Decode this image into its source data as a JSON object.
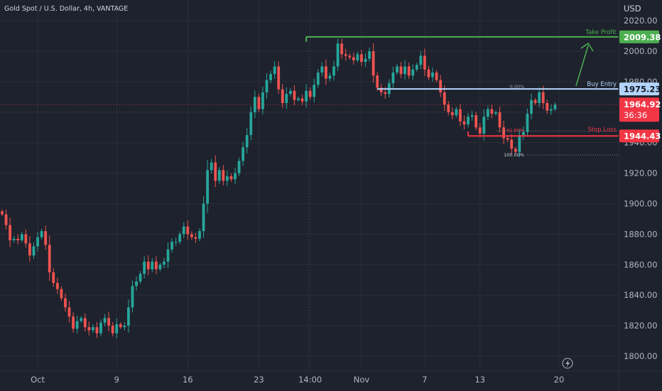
{
  "header": {
    "symbol_line": "Gold Spot / U.S. Dollar, 4h, VANTAGE"
  },
  "currency": "USD",
  "colors": {
    "background": "#1e222d",
    "up": "#26a69a",
    "down": "#ef5350",
    "take_profit": "#4caf50",
    "buy_entry": "#b3d4fc",
    "stop_loss": "#f23645",
    "price_label": "#f23645",
    "grid": "#2a2e39",
    "text": "#b2b5be"
  },
  "icons": {
    "replay": "lightning-icon"
  },
  "chart_data": {
    "type": "candlestick",
    "timeframe": "4h",
    "ylim": [
      1792,
      2032
    ],
    "price_ticks": [
      2020,
      2000,
      1980,
      1960,
      1940,
      1920,
      1900,
      1880,
      1860,
      1840,
      1820,
      1800
    ],
    "price_tick_labels": [
      "2020.00",
      "2000.00",
      "1980.00",
      "1960.00",
      "1940.00",
      "1920.00",
      "1900.00",
      "1880.00",
      "1860.00",
      "1840.00",
      "1820.00",
      "1800.00"
    ],
    "time_labels": [
      {
        "label": "Oct",
        "bar": 9
      },
      {
        "label": "9",
        "bar": 29
      },
      {
        "label": "16",
        "bar": 47
      },
      {
        "label": "23",
        "bar": 65
      },
      {
        "label": "14:00",
        "bar": 78
      },
      {
        "label": "Nov",
        "bar": 91
      },
      {
        "label": "7",
        "bar": 107
      },
      {
        "label": "13",
        "bar": 121
      },
      {
        "label": "20",
        "bar": 141
      }
    ],
    "closes": [
      1893,
      1886,
      1876,
      1877,
      1876,
      1880,
      1874,
      1866,
      1872,
      1878,
      1882,
      1873,
      1855,
      1848,
      1844,
      1838,
      1832,
      1826,
      1818,
      1823,
      1825,
      1819,
      1817,
      1819,
      1815,
      1822,
      1825,
      1820,
      1815,
      1821,
      1819,
      1820,
      1832,
      1846,
      1849,
      1854,
      1862,
      1857,
      1862,
      1857,
      1860,
      1862,
      1870,
      1875,
      1875,
      1880,
      1885,
      1880,
      1878,
      1877,
      1882,
      1900,
      1922,
      1927,
      1915,
      1922,
      1915,
      1918,
      1916,
      1920,
      1928,
      1937,
      1945,
      1960,
      1970,
      1962,
      1973,
      1981,
      1985,
      1990,
      1975,
      1966,
      1972,
      1974,
      1968,
      1969,
      1967,
      1974,
      1970,
      1978,
      1986,
      1990,
      1982,
      1984,
      1990,
      2005,
      1998,
      1997,
      1996,
      1994,
      1998,
      1993,
      1995,
      2000,
      1984,
      1976,
      1973,
      1972,
      1979,
      1986,
      1990,
      1985,
      1990,
      1984,
      1988,
      1991,
      1997,
      1988,
      1983,
      1986,
      1981,
      1973,
      1965,
      1960,
      1958,
      1962,
      1954,
      1952,
      1957,
      1958,
      1950,
      1946,
      1957,
      1962,
      1959,
      1960,
      1950,
      1943,
      1942,
      1936,
      1934,
      1945,
      1947,
      1959,
      1968,
      1966,
      1973,
      1966,
      1961,
      1962,
      1965
    ],
    "period_start_bar": 78,
    "current_price": 1964.92,
    "current_price_label": "1964.92",
    "countdown": "36:36",
    "levels": [
      {
        "name": "Take Profit",
        "price": 2009.38,
        "label": "2009.38",
        "text": "Take Profit",
        "from_bar": 77
      },
      {
        "name": "Buy Entry",
        "price": 1975.23,
        "label": "1975.23",
        "text": "Buy Entry",
        "from_bar": 95
      },
      {
        "name": "Stop Loss",
        "price": 1944.43,
        "label": "1944.43",
        "text": "Stop Loss",
        "from_bar": 118
      }
    ],
    "fib": [
      {
        "label": "0.00%",
        "price": 1975.23
      },
      {
        "label": "61.80%",
        "price": 1947.0
      },
      {
        "label": "100.00%",
        "price": 1932.0
      }
    ]
  }
}
